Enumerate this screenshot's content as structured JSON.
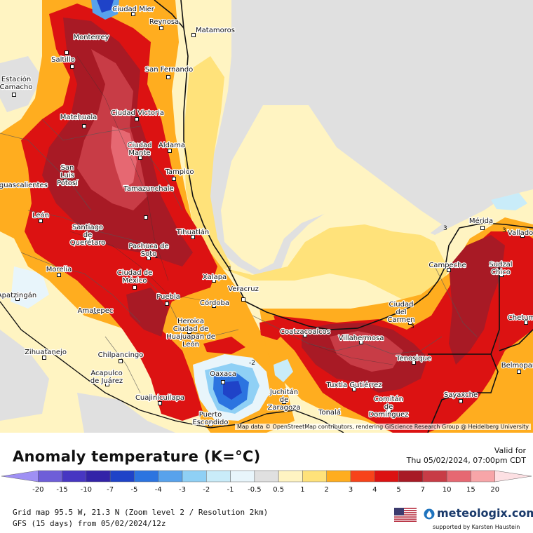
{
  "map": {
    "attribution": "Map data © OpenStreetMap contributors, rendering GIScience Research Group @ Heidelberg University",
    "contour_labels": [
      "1",
      "3",
      "-2",
      "3",
      "3",
      "1"
    ],
    "cities": [
      {
        "name": "Ciudad Mier"
      },
      {
        "name": "Reynosa"
      },
      {
        "name": "Matamoros"
      },
      {
        "name": "Monterrey"
      },
      {
        "name": "Saltillo"
      },
      {
        "name": "San Fernando"
      },
      {
        "name": "Estación Camacho"
      },
      {
        "name": "Matehuala"
      },
      {
        "name": "Ciudad Victoria"
      },
      {
        "name": "Ciudad Mante"
      },
      {
        "name": "Aldama"
      },
      {
        "name": "San Luis Potosí"
      },
      {
        "name": "Tampico"
      },
      {
        "name": "Aguascalientes"
      },
      {
        "name": "León"
      },
      {
        "name": "Tamazunchale"
      },
      {
        "name": "Santiago de Querétaro"
      },
      {
        "name": "Tihuatlán"
      },
      {
        "name": "Pachuca de Soto"
      },
      {
        "name": "Morelia"
      },
      {
        "name": "Ciudad de México"
      },
      {
        "name": "Xalapa"
      },
      {
        "name": "Veracruz"
      },
      {
        "name": "Apatzingán"
      },
      {
        "name": "Puebla"
      },
      {
        "name": "Córdoba"
      },
      {
        "name": "Amatepec"
      },
      {
        "name": "Heroica Ciudad de Huajuapan de León"
      },
      {
        "name": "Zihuatanejo"
      },
      {
        "name": "Chilpancingo"
      },
      {
        "name": "Acapulco de Juárez"
      },
      {
        "name": "Oaxaca"
      },
      {
        "name": "Cuajinicuilapa"
      },
      {
        "name": "Puerto Escondido"
      },
      {
        "name": "Juchitán de Zaragoza"
      },
      {
        "name": "Tonalá"
      },
      {
        "name": "Tuxtla Gutiérrez"
      },
      {
        "name": "Comitán de Domínguez"
      },
      {
        "name": "Coatzacoalcos"
      },
      {
        "name": "Villahermosa"
      },
      {
        "name": "Ciudad del Carmen"
      },
      {
        "name": "Tenosique"
      },
      {
        "name": "Campeche"
      },
      {
        "name": "Mérida"
      },
      {
        "name": "Valladolid"
      },
      {
        "name": "Sudzal Chico"
      },
      {
        "name": "Chetumal"
      },
      {
        "name": "Belmopan"
      },
      {
        "name": "Sayaxche"
      }
    ]
  },
  "legend": {
    "title": "Anomaly temperature (K=°C)",
    "valid_label": "Valid for",
    "valid_time": "Thu 05/02/2024, 07:00pm CDT",
    "ticks": [
      "-20",
      "-15",
      "-10",
      "-7",
      "-5",
      "-4",
      "-3",
      "-2",
      "-1",
      "-0.5",
      "0.5",
      "1",
      "2",
      "3",
      "4",
      "5",
      "7",
      "10",
      "15",
      "20"
    ],
    "colors": [
      "#9f90f4",
      "#6e5ed8",
      "#4736c2",
      "#3323a8",
      "#1f43c8",
      "#2c74e0",
      "#58a2ec",
      "#8fd0f5",
      "#c9ecf9",
      "#e8f5fb",
      "#e0e0e0",
      "#fff4c2",
      "#ffe27a",
      "#ffad1f",
      "#f7431a",
      "#dc1212",
      "#a81a25",
      "#c83c46",
      "#e66872",
      "#f7a5a8",
      "#fde0e3"
    ],
    "grid_info": "Grid map 95.5 W, 21.3 N (Zoom level 2 / Resolution 2km)",
    "model_info": "GFS (15 days) from 05/02/2024/12z",
    "brand": "meteologix.com",
    "support": "supported by Karsten Haustein"
  }
}
